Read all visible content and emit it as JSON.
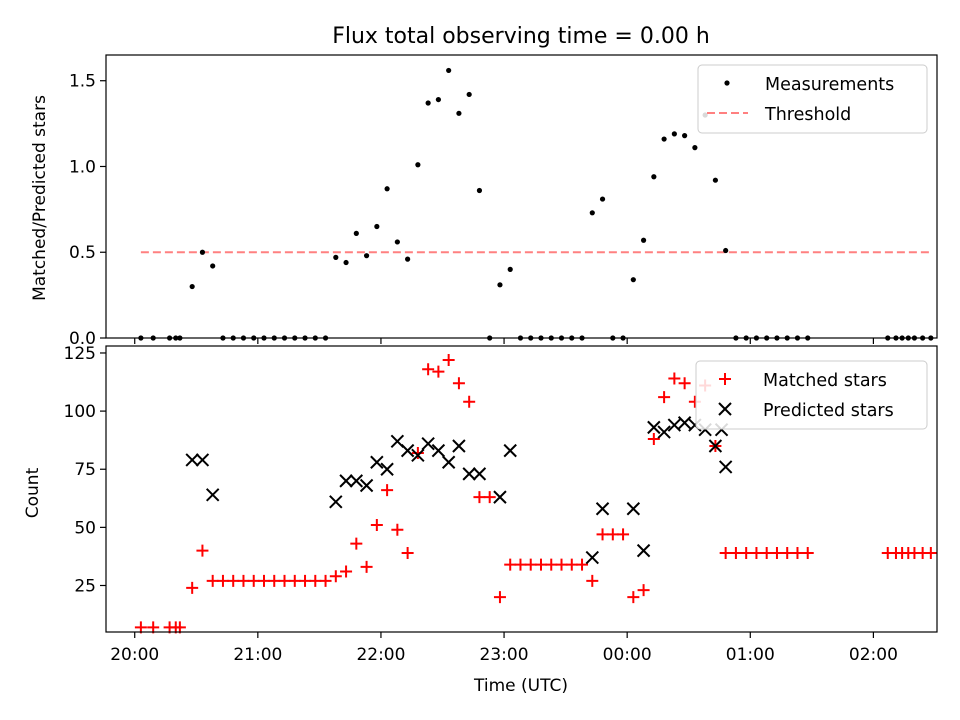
{
  "chart_data": [
    {
      "type": "scatter",
      "title": "Flux total observing time = 0.00 h",
      "xlabel": "",
      "ylabel": "Matched/Predicted stars",
      "xlim": [
        "19:46",
        "02:31"
      ],
      "ylim": [
        0,
        1.65
      ],
      "yticks": [
        0.0,
        0.5,
        1.0,
        1.5
      ],
      "ytick_labels": [
        "0.0",
        "0.5",
        "1.0",
        "1.5"
      ],
      "xticks": [
        "20:00",
        "21:00",
        "22:00",
        "23:00",
        "00:00",
        "01:00",
        "02:00"
      ],
      "xtick_labels_visible": false,
      "legend_position": "top-right",
      "grid": false,
      "series": [
        {
          "name": "Measurements",
          "marker": "dot",
          "color": "#000000",
          "points": [
            [
              "20:03",
              0
            ],
            [
              "20:09",
              0
            ],
            [
              "20:17",
              0
            ],
            [
              "20:20",
              0
            ],
            [
              "20:22",
              0
            ],
            [
              "20:28",
              0.3
            ],
            [
              "20:33",
              0.5
            ],
            [
              "20:38",
              0.42
            ],
            [
              "20:43",
              0
            ],
            [
              "20:48",
              0
            ],
            [
              "20:53",
              0
            ],
            [
              "20:58",
              0
            ],
            [
              "21:03",
              0
            ],
            [
              "21:08",
              0
            ],
            [
              "21:13",
              0
            ],
            [
              "21:18",
              0
            ],
            [
              "21:23",
              0
            ],
            [
              "21:28",
              0
            ],
            [
              "21:33",
              0
            ],
            [
              "21:38",
              0.47
            ],
            [
              "21:43",
              0.44
            ],
            [
              "21:48",
              0.61
            ],
            [
              "21:53",
              0.48
            ],
            [
              "21:58",
              0.65
            ],
            [
              "22:03",
              0.87
            ],
            [
              "22:08",
              0.56
            ],
            [
              "22:13",
              0.46
            ],
            [
              "22:18",
              1.01
            ],
            [
              "22:23",
              1.37
            ],
            [
              "22:28",
              1.39
            ],
            [
              "22:33",
              1.56
            ],
            [
              "22:38",
              1.31
            ],
            [
              "22:43",
              1.42
            ],
            [
              "22:48",
              0.86
            ],
            [
              "22:53",
              0
            ],
            [
              "22:58",
              0.31
            ],
            [
              "23:03",
              0.4
            ],
            [
              "23:08",
              0
            ],
            [
              "23:13",
              0
            ],
            [
              "23:18",
              0
            ],
            [
              "23:23",
              0
            ],
            [
              "23:28",
              0
            ],
            [
              "23:33",
              0
            ],
            [
              "23:38",
              0
            ],
            [
              "23:43",
              0.73
            ],
            [
              "23:48",
              0.81
            ],
            [
              "23:53",
              0
            ],
            [
              "23:58",
              0
            ],
            [
              "00:03",
              0.34
            ],
            [
              "00:08",
              0.57
            ],
            [
              "00:13",
              0.94
            ],
            [
              "00:18",
              1.16
            ],
            [
              "00:23",
              1.19
            ],
            [
              "00:28",
              1.18
            ],
            [
              "00:33",
              1.11
            ],
            [
              "00:38",
              1.3
            ],
            [
              "00:43",
              0.92
            ],
            [
              "00:48",
              0.51
            ],
            [
              "00:53",
              0
            ],
            [
              "00:58",
              0
            ],
            [
              "01:03",
              0
            ],
            [
              "01:08",
              0
            ],
            [
              "01:13",
              0
            ],
            [
              "01:18",
              0
            ],
            [
              "01:23",
              0
            ],
            [
              "01:28",
              0
            ],
            [
              "02:07",
              0
            ],
            [
              "02:11",
              0
            ],
            [
              "02:14",
              0
            ],
            [
              "02:17",
              0
            ],
            [
              "02:20",
              0
            ],
            [
              "02:24",
              0
            ],
            [
              "02:28",
              0
            ]
          ]
        },
        {
          "name": "Threshold",
          "type": "line",
          "dashed": true,
          "color": "#ff8080",
          "points": [
            [
              "20:03",
              0.5
            ],
            [
              "02:28",
              0.5
            ]
          ]
        }
      ]
    },
    {
      "type": "scatter",
      "title": "",
      "xlabel": "Time (UTC)",
      "ylabel": "Count",
      "xlim": [
        "19:46",
        "02:31"
      ],
      "ylim": [
        5,
        128
      ],
      "yticks": [
        25,
        50,
        75,
        100,
        125
      ],
      "ytick_labels": [
        "25",
        "50",
        "75",
        "100",
        "125"
      ],
      "xticks": [
        "20:00",
        "21:00",
        "22:00",
        "23:00",
        "00:00",
        "01:00",
        "02:00"
      ],
      "xtick_labels": [
        "20:00",
        "21:00",
        "22:00",
        "23:00",
        "00:00",
        "01:00",
        "02:00"
      ],
      "legend_position": "top-right",
      "grid": false,
      "series": [
        {
          "name": "Matched stars",
          "marker": "plus",
          "color": "#ff0000",
          "points": [
            [
              "20:03",
              7
            ],
            [
              "20:09",
              7
            ],
            [
              "20:17",
              7
            ],
            [
              "20:20",
              7
            ],
            [
              "20:22",
              7
            ],
            [
              "20:28",
              24
            ],
            [
              "20:33",
              40
            ],
            [
              "20:38",
              27
            ],
            [
              "20:43",
              27
            ],
            [
              "20:48",
              27
            ],
            [
              "20:53",
              27
            ],
            [
              "20:58",
              27
            ],
            [
              "21:03",
              27
            ],
            [
              "21:08",
              27
            ],
            [
              "21:13",
              27
            ],
            [
              "21:18",
              27
            ],
            [
              "21:23",
              27
            ],
            [
              "21:28",
              27
            ],
            [
              "21:33",
              27
            ],
            [
              "21:38",
              29
            ],
            [
              "21:43",
              31
            ],
            [
              "21:48",
              43
            ],
            [
              "21:53",
              33
            ],
            [
              "21:58",
              51
            ],
            [
              "22:03",
              66
            ],
            [
              "22:08",
              49
            ],
            [
              "22:13",
              39
            ],
            [
              "22:18",
              82
            ],
            [
              "22:23",
              118
            ],
            [
              "22:28",
              117
            ],
            [
              "22:33",
              122
            ],
            [
              "22:38",
              112
            ],
            [
              "22:43",
              104
            ],
            [
              "22:48",
              63
            ],
            [
              "22:53",
              63
            ],
            [
              "22:58",
              20
            ],
            [
              "23:03",
              34
            ],
            [
              "23:08",
              34
            ],
            [
              "23:13",
              34
            ],
            [
              "23:18",
              34
            ],
            [
              "23:23",
              34
            ],
            [
              "23:28",
              34
            ],
            [
              "23:33",
              34
            ],
            [
              "23:38",
              34
            ],
            [
              "23:43",
              27
            ],
            [
              "23:48",
              47
            ],
            [
              "23:53",
              47
            ],
            [
              "23:58",
              47
            ],
            [
              "00:03",
              20
            ],
            [
              "00:08",
              23
            ],
            [
              "00:13",
              88
            ],
            [
              "00:18",
              106
            ],
            [
              "00:23",
              114
            ],
            [
              "00:28",
              112
            ],
            [
              "00:33",
              104
            ],
            [
              "00:38",
              111
            ],
            [
              "00:43",
              85
            ],
            [
              "00:48",
              39
            ],
            [
              "00:53",
              39
            ],
            [
              "00:58",
              39
            ],
            [
              "01:03",
              39
            ],
            [
              "01:08",
              39
            ],
            [
              "01:13",
              39
            ],
            [
              "01:18",
              39
            ],
            [
              "01:23",
              39
            ],
            [
              "01:28",
              39
            ],
            [
              "02:07",
              39
            ],
            [
              "02:11",
              39
            ],
            [
              "02:14",
              39
            ],
            [
              "02:17",
              39
            ],
            [
              "02:20",
              39
            ],
            [
              "02:24",
              39
            ],
            [
              "02:28",
              39
            ]
          ]
        },
        {
          "name": "Predicted stars",
          "marker": "x",
          "color": "#000000",
          "points": [
            [
              "20:28",
              79
            ],
            [
              "20:33",
              79
            ],
            [
              "20:38",
              64
            ],
            [
              "21:38",
              61
            ],
            [
              "21:43",
              70
            ],
            [
              "21:48",
              70
            ],
            [
              "21:53",
              68
            ],
            [
              "21:58",
              78
            ],
            [
              "22:03",
              75
            ],
            [
              "22:08",
              87
            ],
            [
              "22:13",
              83
            ],
            [
              "22:18",
              81
            ],
            [
              "22:23",
              86
            ],
            [
              "22:28",
              83
            ],
            [
              "22:33",
              78
            ],
            [
              "22:38",
              85
            ],
            [
              "22:43",
              73
            ],
            [
              "22:48",
              73
            ],
            [
              "22:58",
              63
            ],
            [
              "23:03",
              83
            ],
            [
              "23:43",
              37
            ],
            [
              "23:48",
              58
            ],
            [
              "00:03",
              58
            ],
            [
              "00:08",
              40
            ],
            [
              "00:13",
              93
            ],
            [
              "00:18",
              91
            ],
            [
              "00:23",
              94
            ],
            [
              "00:28",
              95
            ],
            [
              "00:33",
              94
            ],
            [
              "00:38",
              92
            ],
            [
              "00:43",
              85
            ],
            [
              "00:46",
              92
            ],
            [
              "00:48",
              76
            ]
          ]
        }
      ]
    }
  ]
}
